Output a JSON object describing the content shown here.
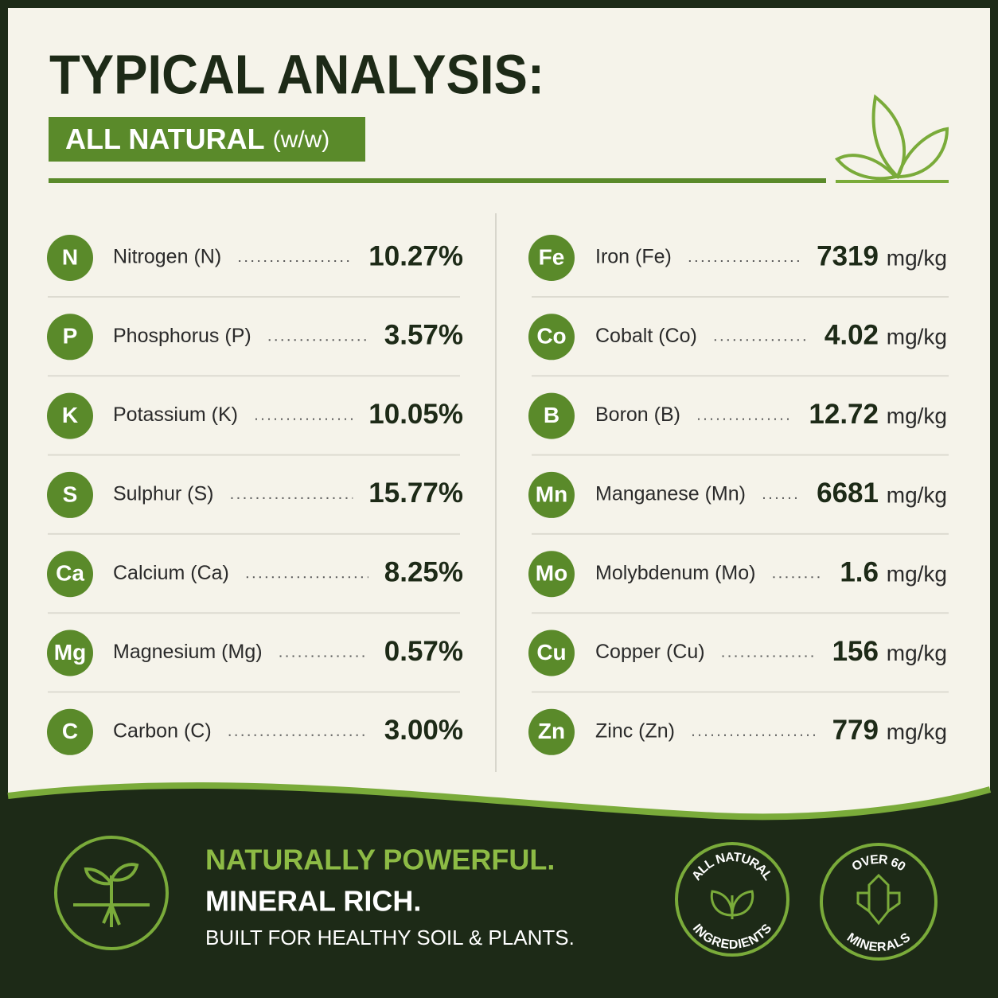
{
  "header": {
    "title": "TYPICAL ANALYSIS:",
    "subtitle": "ALL NATURAL",
    "subtitle_note": "(w/w)"
  },
  "left_rows": [
    {
      "symbol": "N",
      "name": "Nitrogen (N)",
      "value": "10.27%"
    },
    {
      "symbol": "P",
      "name": "Phosphorus (P)",
      "value": "3.57%"
    },
    {
      "symbol": "K",
      "name": "Potassium (K)",
      "value": "10.05%"
    },
    {
      "symbol": "S",
      "name": "Sulphur (S)",
      "value": "15.77%"
    },
    {
      "symbol": "Ca",
      "name": "Calcium (Ca)",
      "value": "8.25%"
    },
    {
      "symbol": "Mg",
      "name": "Magnesium (Mg)",
      "value": "0.57%"
    },
    {
      "symbol": "C",
      "name": "Carbon (C)",
      "value": "3.00%"
    }
  ],
  "right_rows": [
    {
      "symbol": "Fe",
      "name": "Iron (Fe)",
      "value": "7319",
      "unit": "mg/kg"
    },
    {
      "symbol": "Co",
      "name": "Cobalt (Co)",
      "value": "4.02",
      "unit": "mg/kg"
    },
    {
      "symbol": "B",
      "name": "Boron (B)",
      "value": "12.72",
      "unit": "mg/kg"
    },
    {
      "symbol": "Mn",
      "name": "Manganese (Mn)",
      "value": "6681",
      "unit": "mg/kg"
    },
    {
      "symbol": "Mo",
      "name": "Molybdenum (Mo)",
      "value": "1.6",
      "unit": "mg/kg"
    },
    {
      "symbol": "Cu",
      "name": "Copper (Cu)",
      "value": "156",
      "unit": "mg/kg"
    },
    {
      "symbol": "Zn",
      "name": "Zinc (Zn)",
      "value": "779",
      "unit": "mg/kg"
    }
  ],
  "footer": {
    "line1": "NATURALLY POWERFUL.",
    "line2": "MINERAL RICH.",
    "line3": "BUILT FOR HEALTHY SOIL & PLANTS.",
    "badges": [
      {
        "top": "ALL NATURAL",
        "bottom": "INGREDIENTS"
      },
      {
        "top": "OVER 60",
        "bottom": "MINERALS"
      }
    ]
  }
}
